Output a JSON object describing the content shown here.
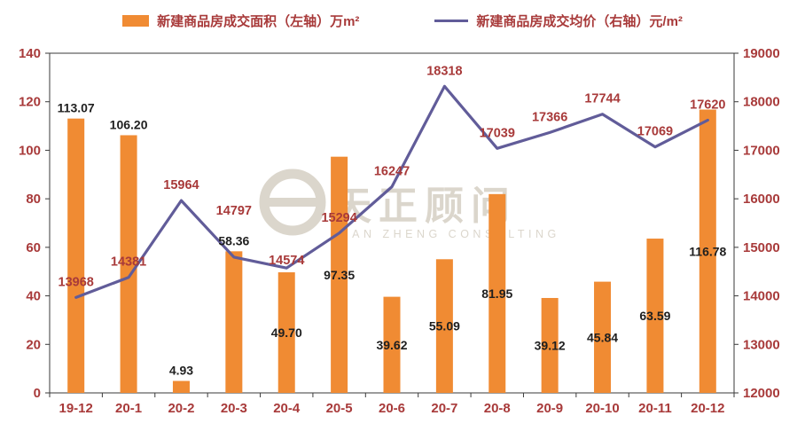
{
  "legend": {
    "items": [
      {
        "label": "新建商品房成交面积（左轴）万m²",
        "type": "bar"
      },
      {
        "label": "新建商品房成交均价（右轴）元/m²",
        "type": "line"
      }
    ]
  },
  "watermark": {
    "logo": "e",
    "cn": "天正顾问",
    "en": "TIAN ZHENG CONSULTING",
    "color": "#d8d2c7"
  },
  "chart_data": {
    "type": "combo-bar-line",
    "categories": [
      "19-12",
      "20-1",
      "20-2",
      "20-3",
      "20-4",
      "20-5",
      "20-6",
      "20-7",
      "20-8",
      "20-9",
      "20-10",
      "20-11",
      "20-12"
    ],
    "series": [
      {
        "name": "新建商品房成交面积（左轴）万m²",
        "type": "bar",
        "axis": "left",
        "unit": "万m²",
        "color": "#F08B33",
        "label_color": "#1f1f1f",
        "values": [
          113.07,
          106.2,
          4.93,
          58.36,
          49.7,
          97.35,
          39.62,
          55.09,
          81.95,
          39.12,
          45.84,
          63.59,
          116.78
        ],
        "label_placement": [
          "above",
          "above",
          "above",
          "above",
          "middle",
          "middle",
          "middle",
          "middle",
          "middle",
          "middle",
          "middle",
          "middle",
          "middle"
        ]
      },
      {
        "name": "新建商品房成交均价（右轴）元/m²",
        "type": "line",
        "axis": "right",
        "unit": "元/m²",
        "color": "#615C99",
        "label_color": "#A83A3A",
        "values": [
          13968,
          14381,
          15964,
          14797,
          14574,
          15294,
          16247,
          18318,
          17039,
          17366,
          17744,
          17069,
          17620
        ]
      }
    ],
    "left_axis": {
      "min": 0,
      "max": 140,
      "step": 20
    },
    "right_axis": {
      "min": 12000,
      "max": 19000,
      "step": 1000
    },
    "grid": false,
    "legend_position": "top",
    "axis_label_color": "#A83A3A",
    "axis_line_color": "#3a3a3a"
  }
}
